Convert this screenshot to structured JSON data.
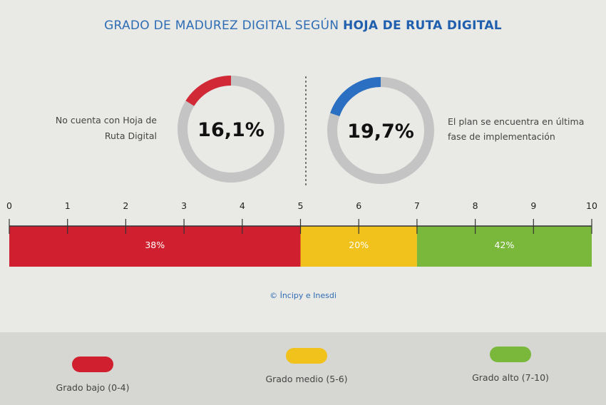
{
  "header": {
    "title_prefix": "GRADO DE MADUREZ DIGITAL SEGÚN",
    "title_bold": "HOJA DE RUTA DIGITAL"
  },
  "donuts": [
    {
      "label_lines": [
        "No cuenta con Hoja de",
        "Ruta Digital"
      ],
      "value_text": "16,1%",
      "value": 16.1,
      "color": "#d12a36"
    },
    {
      "label_lines": [
        "El plan se encuentra en última",
        "fase de implementación"
      ],
      "value_text": "19,7%",
      "value": 19.7,
      "color": "#2b6fc2"
    }
  ],
  "chart_data": {
    "type": "bar",
    "orientation": "horizontal-stacked",
    "x_ticks": [
      "0",
      "1",
      "2",
      "3",
      "4",
      "5",
      "6",
      "7",
      "8",
      "9",
      "10"
    ],
    "xlim": [
      0,
      10
    ],
    "segments": [
      {
        "range": [
          0,
          5
        ],
        "value": 38,
        "label": "38%",
        "color": "#d0202f"
      },
      {
        "range": [
          5,
          7
        ],
        "value": 20,
        "label": "20%",
        "color": "#f1c21b"
      },
      {
        "range": [
          7,
          10
        ],
        "value": 42,
        "label": "42%",
        "color": "#7ab83b"
      }
    ],
    "legend": [
      {
        "label": "Grado bajo",
        "range": "(0-4)",
        "color": "#d0202f"
      },
      {
        "label": "Grado medio",
        "range": "(5-6)",
        "color": "#f1c21b"
      },
      {
        "label": "Grado alto",
        "range": "(7-10)",
        "color": "#7ab83b"
      }
    ]
  },
  "credit": "© Íncipy e Inesdi"
}
